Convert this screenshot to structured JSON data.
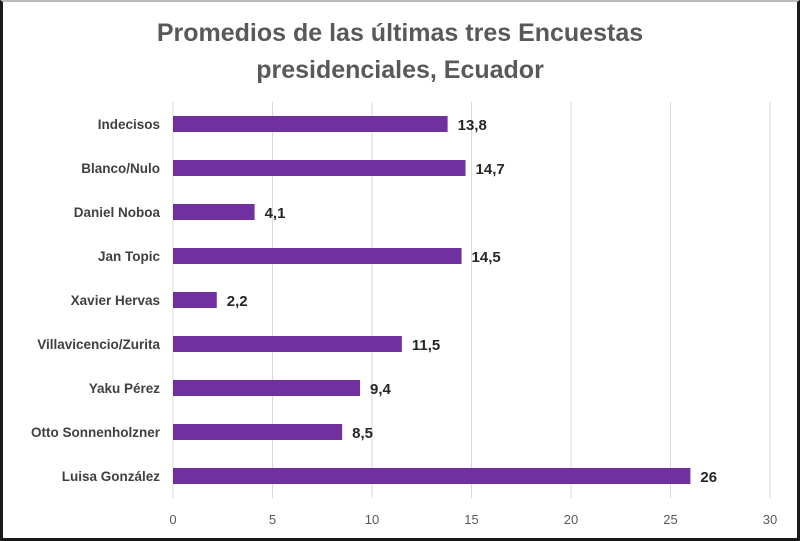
{
  "chart_data": {
    "type": "bar",
    "orientation": "horizontal",
    "title_lines": [
      "Promedios de las últimas tres Encuestas",
      "presidenciales, Ecuador"
    ],
    "categories": [
      "Indecisos",
      "Blanco/Nulo",
      "Daniel Noboa",
      "Jan Topic",
      "Xavier Hervas",
      "Villavicencio/Zurita",
      "Yaku Pérez",
      "Otto Sonnenholzner",
      "Luisa González"
    ],
    "values": [
      13.8,
      14.7,
      4.1,
      14.5,
      2.2,
      11.5,
      9.4,
      8.5,
      26
    ],
    "data_labels": [
      "13,8",
      "14,7",
      "4,1",
      "14,5",
      "2,2",
      "11,5",
      "9,4",
      "8,5",
      "26"
    ],
    "xlim": [
      0,
      30
    ],
    "xticks": [
      0,
      5,
      10,
      15,
      20,
      25,
      30
    ],
    "grid": "vertical",
    "xlabel": "",
    "ylabel": "",
    "bar_color": "#7030a0"
  }
}
